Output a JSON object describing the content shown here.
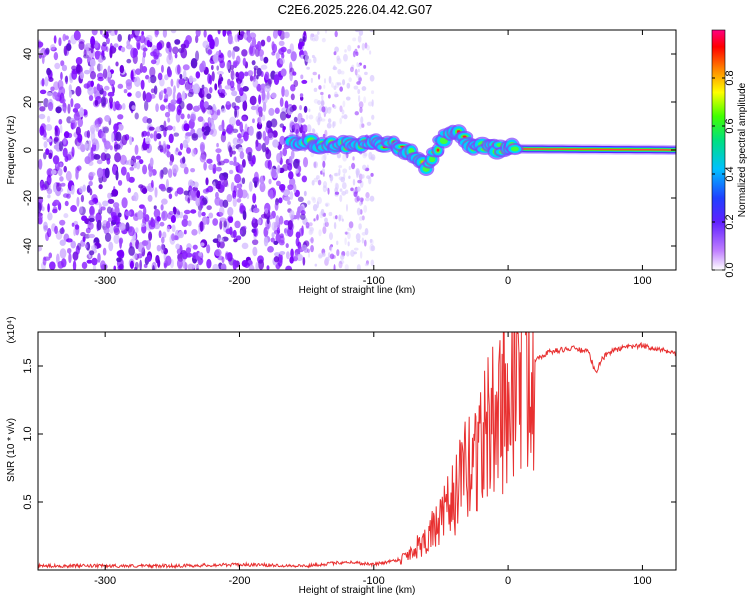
{
  "title": "C2E6.2025.226.04.42.G07",
  "chart_data": [
    {
      "type": "heatmap",
      "xlabel": "Height of straight line (km)",
      "ylabel": "Frequency (Hz)",
      "xlim": [
        -350,
        125
      ],
      "ylim": [
        -50,
        50
      ],
      "xticks": [
        -300,
        -200,
        -100,
        0,
        100
      ],
      "xtick_labels": [
        "-300",
        "-200",
        "-100",
        "0",
        "100"
      ],
      "yticks": [
        -40,
        -20,
        0,
        20,
        40
      ],
      "ytick_labels": [
        "-40",
        "-20",
        "0",
        "20",
        "40"
      ],
      "grid": false,
      "colorbar": {
        "label": "Normalized spectral amplitude",
        "range": [
          0,
          1
        ],
        "ticks": [
          0.0,
          0.2,
          0.4,
          0.6,
          0.8
        ],
        "tick_labels": [
          "0.0",
          "0.2",
          "0.4",
          "0.6",
          "0.8"
        ],
        "colormap": [
          "#ffffff",
          "#a000ff",
          "#2020ff",
          "#00c0ff",
          "#00e080",
          "#40ff00",
          "#ffff00",
          "#ff8000",
          "#ff0000",
          "#ff0080"
        ]
      },
      "noise_region_x": [
        -350,
        -150
      ],
      "fading_noise_x": [
        -150,
        -100
      ],
      "signal_track": [
        {
          "x": -160,
          "f": 3
        },
        {
          "x": -120,
          "f": 2
        },
        {
          "x": -100,
          "f": 3
        },
        {
          "x": -85,
          "f": 2
        },
        {
          "x": -70,
          "f": -2
        },
        {
          "x": -60,
          "f": -8
        },
        {
          "x": -50,
          "f": 4
        },
        {
          "x": -40,
          "f": 8
        },
        {
          "x": -30,
          "f": 3
        },
        {
          "x": -20,
          "f": 1
        },
        {
          "x": 0,
          "f": 0.5
        },
        {
          "x": 125,
          "f": 0
        }
      ]
    },
    {
      "type": "line",
      "xlabel": "Height of straight line (km)",
      "ylabel": "SNR (10 * v/v)",
      "y_multiplier": "(x10⁴)",
      "xlim": [
        -350,
        125
      ],
      "ylim": [
        0,
        1.75
      ],
      "xticks": [
        -300,
        -200,
        -100,
        0,
        100
      ],
      "xtick_labels": [
        "-300",
        "-200",
        "-100",
        "0",
        "100"
      ],
      "yticks": [
        0.5,
        1.0,
        1.5
      ],
      "ytick_labels": [
        "0.5",
        "1.0",
        "1.5"
      ],
      "grid": false,
      "line_color": "#e83030",
      "series": [
        {
          "x": [
            -350,
            -300,
            -250,
            -200,
            -150,
            -120,
            -100,
            -80,
            -70,
            -60,
            -50,
            -40,
            -30,
            -20,
            -10,
            0,
            10,
            20,
            30,
            40,
            50,
            60,
            65,
            70,
            75,
            80,
            90,
            100,
            110,
            120,
            125
          ],
          "y": [
            0.03,
            0.03,
            0.03,
            0.04,
            0.03,
            0.06,
            0.04,
            0.08,
            0.15,
            0.25,
            0.35,
            0.55,
            0.75,
            0.95,
            1.1,
            1.3,
            1.45,
            1.55,
            1.6,
            1.62,
            1.63,
            1.6,
            1.45,
            1.55,
            1.6,
            1.62,
            1.64,
            1.65,
            1.63,
            1.6,
            1.58
          ]
        }
      ]
    }
  ]
}
